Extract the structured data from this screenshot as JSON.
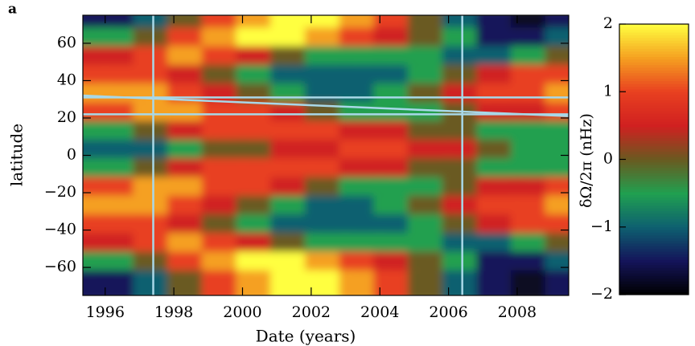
{
  "chart_data": {
    "type": "heatmap",
    "panel_label": "a",
    "xlabel": "Date (years)",
    "ylabel": "latitude",
    "colorbar_label": "δΩ/2π (nHz)",
    "xlim": [
      1995.35,
      2009.5
    ],
    "ylim": [
      -75,
      75
    ],
    "xticks": [
      1996,
      1998,
      2000,
      2002,
      2004,
      2006,
      2008
    ],
    "yticks": [
      {
        "value": -60,
        "label": "−60"
      },
      {
        "value": -40,
        "label": "−40"
      },
      {
        "value": -20,
        "label": "−20"
      },
      0,
      20,
      40,
      60
    ],
    "clim": [
      -2,
      2
    ],
    "cticks": [
      {
        "value": -2,
        "label": "−2"
      },
      {
        "value": -1,
        "label": "−1"
      },
      0,
      1,
      2
    ],
    "colormap": [
      "#000000",
      "#14145a",
      "#0e6070",
      "#20a050",
      "#6a5a20",
      "#d02020",
      "#e84020",
      "#f5a020",
      "#ffff40"
    ],
    "x": [
      1995.5,
      1996.5,
      1997.5,
      1998.5,
      1999.5,
      2000.5,
      2001.5,
      2002.5,
      2003.5,
      2004.5,
      2005.5,
      2006.5,
      2007.5,
      2008.5,
      2009.5
    ],
    "y": [
      70,
      60,
      50,
      40,
      30,
      20,
      10,
      0,
      -10,
      -20,
      -30,
      -40,
      -50,
      -60,
      -70
    ],
    "z": [
      [
        -1.5,
        -1.5,
        -1,
        0,
        1,
        1.5,
        2,
        2,
        1.5,
        1,
        0,
        -1,
        -1.5,
        -1.8,
        -1.5
      ],
      [
        -0.5,
        -0.5,
        0,
        1,
        1.5,
        2,
        2,
        1.5,
        1,
        0.5,
        0,
        -0.5,
        -1.5,
        -1.5,
        -1
      ],
      [
        0.5,
        0.5,
        1,
        1.5,
        1,
        0.5,
        0,
        -0.5,
        -0.5,
        -0.5,
        -0.5,
        -1,
        -1,
        -0.5,
        0
      ],
      [
        1,
        1,
        1,
        0.5,
        0,
        -0.5,
        -1,
        -1,
        -1,
        -1,
        -0.5,
        0,
        0.5,
        1,
        1
      ],
      [
        1.5,
        1.5,
        1.5,
        1,
        0.5,
        0,
        -0.5,
        -1,
        -1,
        -0.5,
        0,
        0.5,
        1,
        1,
        1.5
      ],
      [
        1,
        1,
        1.5,
        1.5,
        1,
        1,
        0.5,
        0,
        -0.5,
        -0.5,
        -0.5,
        0,
        0.5,
        0.5,
        1
      ],
      [
        -0.5,
        -0.5,
        0,
        0.5,
        1,
        1,
        1,
        1,
        0.5,
        0.5,
        0,
        0,
        -0.5,
        -0.5,
        -0.5
      ],
      [
        -1,
        -1,
        -1,
        -0.5,
        0,
        0,
        0.5,
        0.5,
        1,
        1,
        0.5,
        0.5,
        0,
        -0.5,
        -0.5
      ],
      [
        -0.5,
        -0.5,
        0,
        0.5,
        1,
        1,
        1,
        1,
        0.5,
        0.5,
        0,
        0,
        -0.5,
        -0.5,
        -0.5
      ],
      [
        1,
        1,
        1.5,
        1.5,
        1,
        1,
        0.5,
        0,
        -0.5,
        -0.5,
        -0.5,
        0,
        0.5,
        0.5,
        1
      ],
      [
        1.5,
        1.5,
        1.5,
        1,
        0.5,
        0,
        -0.5,
        -1,
        -1,
        -0.5,
        0,
        0.5,
        1,
        1,
        1.5
      ],
      [
        1,
        1,
        1,
        0.5,
        0,
        -0.5,
        -1,
        -1,
        -1,
        -1,
        -0.5,
        0,
        0.5,
        1,
        1
      ],
      [
        0.5,
        0.5,
        1,
        1.5,
        1,
        0.5,
        0,
        -0.5,
        -0.5,
        -0.5,
        -0.5,
        -1,
        -1,
        -0.5,
        0
      ],
      [
        -0.5,
        -0.5,
        0,
        1,
        1.5,
        2,
        2,
        1.5,
        1,
        0.5,
        0,
        -0.5,
        -1.5,
        -1.5,
        -1
      ],
      [
        -1.5,
        -1.5,
        -1,
        0,
        1,
        1.5,
        2,
        2,
        1.5,
        1,
        0,
        -1,
        -1.5,
        -1.8,
        -1.5
      ]
    ],
    "guide_color": "#a8d8e8",
    "vlines": [
      1997.4,
      2006.4
    ],
    "hlines": [
      31,
      22
    ],
    "diagonal": {
      "x": [
        1995.35,
        2009.5
      ],
      "y": [
        32,
        21
      ]
    }
  }
}
